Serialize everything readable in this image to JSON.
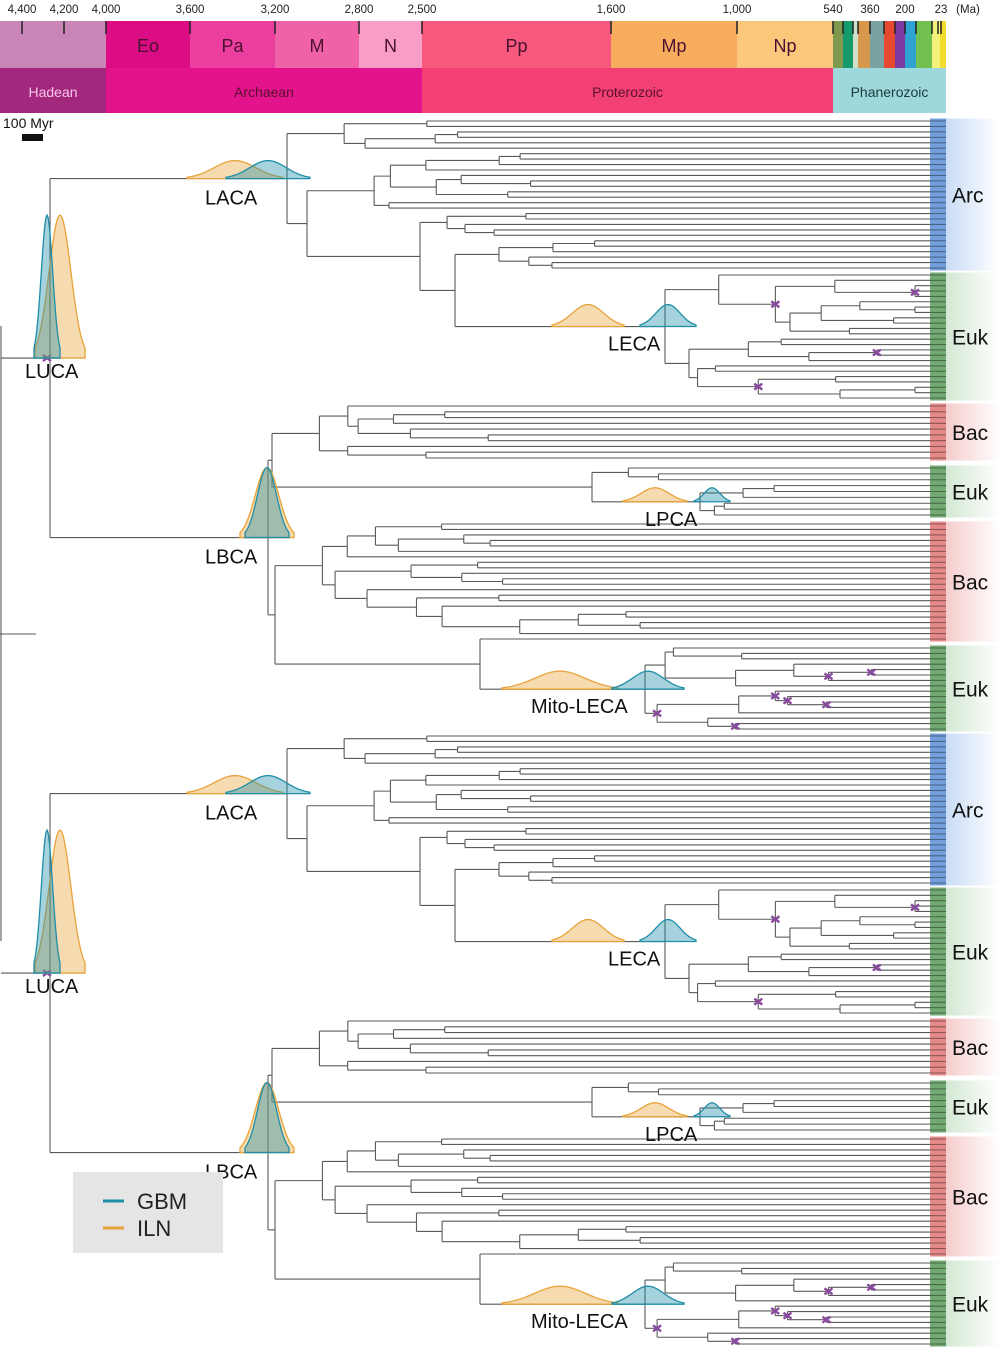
{
  "timescale": {
    "unit": "(Ma)",
    "ticks": [
      "4,400",
      "4,200",
      "4,000",
      "3,600",
      "3,200",
      "2,800",
      "2,500",
      "1,600",
      "1,000",
      "540",
      "360",
      "200",
      "23"
    ],
    "eras": [
      {
        "label": "",
        "color": "#c985b5"
      },
      {
        "label": "Eo",
        "color": "#dc0c84"
      },
      {
        "label": "Pa",
        "color": "#ec3e9f"
      },
      {
        "label": "M",
        "color": "#f062a8"
      },
      {
        "label": "N",
        "color": "#f79dc6"
      },
      {
        "label": "Pp",
        "color": "#f6597d"
      },
      {
        "label": "Mp",
        "color": "#f8ad5e"
      },
      {
        "label": "Np",
        "color": "#fac77b"
      }
    ],
    "eons": [
      {
        "label": "Hadean",
        "color": "#a2287e",
        "text_color": "#f6c6e8"
      },
      {
        "label": "Archaean",
        "color": "#e3138b",
        "text_color": "#5a1030"
      },
      {
        "label": "Proterozoic",
        "color": "#f23f74",
        "text_color": "#5a1030"
      },
      {
        "label": "Phanerozoic",
        "color": "#9fd8dc",
        "text_color": "#1a3a3c"
      }
    ],
    "phanerozoic_period_colors": [
      "#7f9a4f",
      "#169a6c",
      "#cfe0c8",
      "#d6974c",
      "#7aa2a2",
      "#e6492f",
      "#7a3aa0",
      "#2ea3d2",
      "#72c150",
      "#f3f17a",
      "#f2dc2c"
    ]
  },
  "scale_bar": "100 Myr",
  "panels": [
    {
      "nodes": {
        "luca": "LUCA",
        "laca": "LACA",
        "leca": "LECA",
        "lbca": "LBCA",
        "lpca": "LPCA",
        "mito": "Mito-LECA"
      },
      "clades": [
        "Arc",
        "Euk",
        "Bac",
        "Euk",
        "Bac",
        "Euk"
      ]
    },
    {
      "nodes": {
        "luca": "LUCA",
        "laca": "LACA",
        "leca": "LECA",
        "lbca": "LBCA",
        "lpca": "LPCA",
        "mito": "Mito-LECA"
      },
      "clades": [
        "Arc",
        "Euk",
        "Bac",
        "Euk",
        "Bac",
        "Euk"
      ]
    }
  ],
  "clade_colors": {
    "Arc": "#5b8fd6",
    "Euk": "#5a9a5a",
    "Bac": "#e07474"
  },
  "legend": {
    "items": [
      {
        "label": "GBM",
        "color": "#1f8ea8"
      },
      {
        "label": "ILN",
        "color": "#e8a33a"
      }
    ]
  }
}
